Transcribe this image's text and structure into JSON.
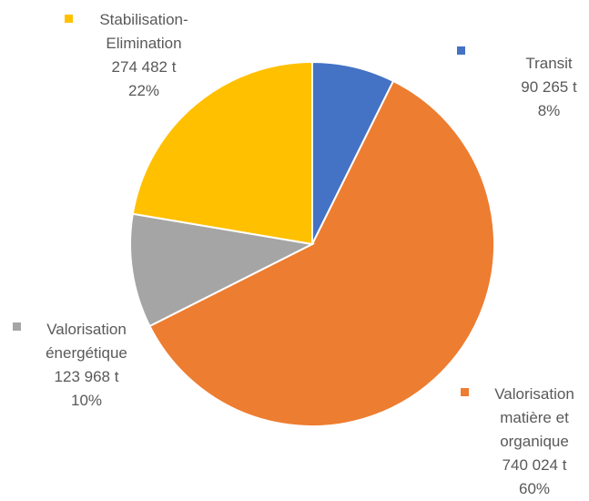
{
  "chart_data": {
    "type": "pie",
    "categories": [
      "Transit",
      "Valorisation matière et organique",
      "Valorisation énergétique",
      "Stabilisation-Elimination"
    ],
    "values": [
      90265,
      740024,
      123968,
      274482
    ],
    "value_labels": [
      "90 265 t",
      "740 024 t",
      "123 968 t",
      "274 482 t"
    ],
    "percent_labels": [
      "8%",
      "60%",
      "10%",
      "22%"
    ],
    "colors": [
      "#4472c4",
      "#ed7d31",
      "#a5a5a5",
      "#ffc000"
    ]
  }
}
